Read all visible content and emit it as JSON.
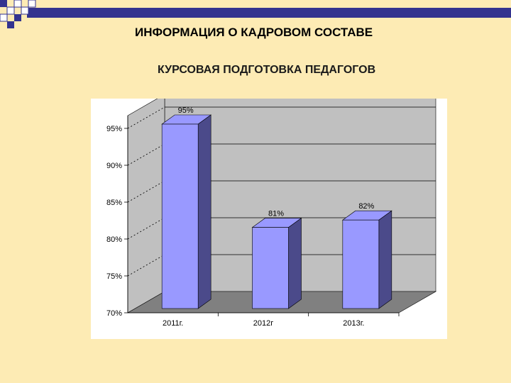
{
  "slide": {
    "title": "ИНФОРМАЦИЯ О КАДРОВОМ СОСТАВЕ",
    "subtitle": "КУРСОВАЯ ПОДГОТОВКА ПЕДАГОГОВ"
  },
  "colors": {
    "background": "#FDEBB4",
    "band": "#33338F",
    "bar_front": "#9999FF",
    "bar_side": "#4B4A8A",
    "wall": "#C0C0C0",
    "floor": "#808080"
  },
  "chart_data": {
    "type": "bar",
    "title": "",
    "xlabel": "",
    "ylabel": "",
    "categories": [
      "2011г.",
      "2012г",
      "2013г."
    ],
    "values": [
      95,
      81,
      82
    ],
    "data_labels": [
      "95%",
      "81%",
      "82%"
    ],
    "ylim": [
      70,
      95
    ],
    "yticks": [
      70,
      75,
      80,
      85,
      90,
      95
    ],
    "ytick_labels": [
      "70%",
      "75%",
      "80%",
      "85%",
      "90%",
      "95%"
    ],
    "grid": true,
    "legend": "none",
    "style": "3d-column"
  }
}
